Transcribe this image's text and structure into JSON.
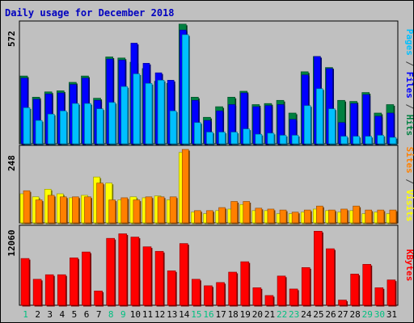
{
  "chart_data": {
    "title": "Daily usage for December 2018",
    "type": "bar",
    "x": [
      "1",
      "2",
      "3",
      "4",
      "5",
      "6",
      "7",
      "8",
      "9",
      "10",
      "11",
      "12",
      "13",
      "14",
      "15",
      "16",
      "17",
      "18",
      "19",
      "20",
      "21",
      "22",
      "23",
      "24",
      "25",
      "26",
      "27",
      "28",
      "29",
      "30",
      "31"
    ],
    "weekend_days": [
      "1",
      "8",
      "9",
      "15",
      "16",
      "22",
      "23",
      "29",
      "30"
    ],
    "panels": [
      {
        "id": "pages-files-hits",
        "max_label": "572",
        "ylim": [
          0,
          572
        ],
        "series": [
          {
            "name": "Hits",
            "color": "#008040",
            "values": [
              320,
              220,
              245,
              250,
              290,
              320,
              215,
              410,
              405,
              385,
              355,
              295,
              285,
              565,
              220,
              125,
              175,
              220,
              248,
              185,
              190,
              205,
              145,
              340,
              412,
              360,
              205,
              200,
              242,
              145,
              185
            ]
          },
          {
            "name": "Files",
            "color": "#0000ff",
            "values": [
              310,
              210,
              235,
              240,
              280,
              310,
              205,
              400,
              395,
              475,
              380,
              335,
              300,
              537,
              205,
              110,
              155,
              185,
              240,
              175,
              180,
              185,
              115,
              325,
              412,
              355,
              100,
              190,
              232,
              130,
              145
            ]
          },
          {
            "name": "Pages",
            "color": "#00c0ff",
            "values": [
              170,
              110,
              140,
              155,
              190,
              190,
              165,
              195,
              270,
              330,
              285,
              300,
              155,
              515,
              100,
              55,
              55,
              55,
              70,
              45,
              50,
              40,
              40,
              180,
              260,
              165,
              35,
              35,
              35,
              40,
              30
            ]
          }
        ],
        "axis_label_parts": [
          {
            "text": "Pages",
            "color": "#00c0ff"
          },
          {
            "text": " / ",
            "color": "#404040"
          },
          {
            "text": "Files",
            "color": "#0000ff"
          },
          {
            "text": " / ",
            "color": "#404040"
          },
          {
            "text": "Hits",
            "color": "#008040"
          }
        ]
      },
      {
        "id": "visits-sites",
        "max_label": "248",
        "ylim": [
          0,
          248
        ],
        "series": [
          {
            "name": "Visits",
            "color": "#ffff00",
            "values": [
              95,
              85,
              110,
              95,
              82,
              90,
              150,
              130,
              75,
              85,
              82,
              88,
              75,
              230,
              35,
              30,
              40,
              45,
              60,
              40,
              40,
              30,
              30,
              35,
              45,
              40,
              35,
              40,
              30,
              35,
              30
            ]
          },
          {
            "name": "Sites",
            "color": "#ff8000",
            "values": [
              105,
              75,
              90,
              85,
              85,
              85,
              130,
              75,
              82,
              75,
              85,
              85,
              85,
              240,
              40,
              40,
              50,
              70,
              70,
              48,
              45,
              42,
              35,
              42,
              55,
              42,
              45,
              55,
              42,
              42,
              42
            ]
          }
        ],
        "axis_label_parts": [
          {
            "text": "Sites",
            "color": "#ff8000"
          },
          {
            "text": " / ",
            "color": "#404040"
          },
          {
            "text": "Visits",
            "color": "#ffff00"
          }
        ]
      },
      {
        "id": "kbytes",
        "max_label": "12060",
        "ylim": [
          0,
          12060
        ],
        "series": [
          {
            "name": "KBytes",
            "color": "#ff0000",
            "values": [
              7200,
              4000,
              4700,
              4700,
              7300,
              8200,
              2200,
              10300,
              11000,
              10500,
              9000,
              8300,
              5300,
              9500,
              4000,
              3000,
              3500,
              5100,
              6700,
              2700,
              1500,
              4500,
              2500,
              5800,
              11400,
              8700,
              800,
              4800,
              6300,
              2700,
              3900
            ]
          }
        ],
        "axis_label_parts": [
          {
            "text": "KBytes",
            "color": "#ff0000"
          }
        ]
      }
    ],
    "colors": {
      "background": "#c0c0c0",
      "weekday_label": "#008040",
      "weekend_label": "#00c080"
    }
  }
}
